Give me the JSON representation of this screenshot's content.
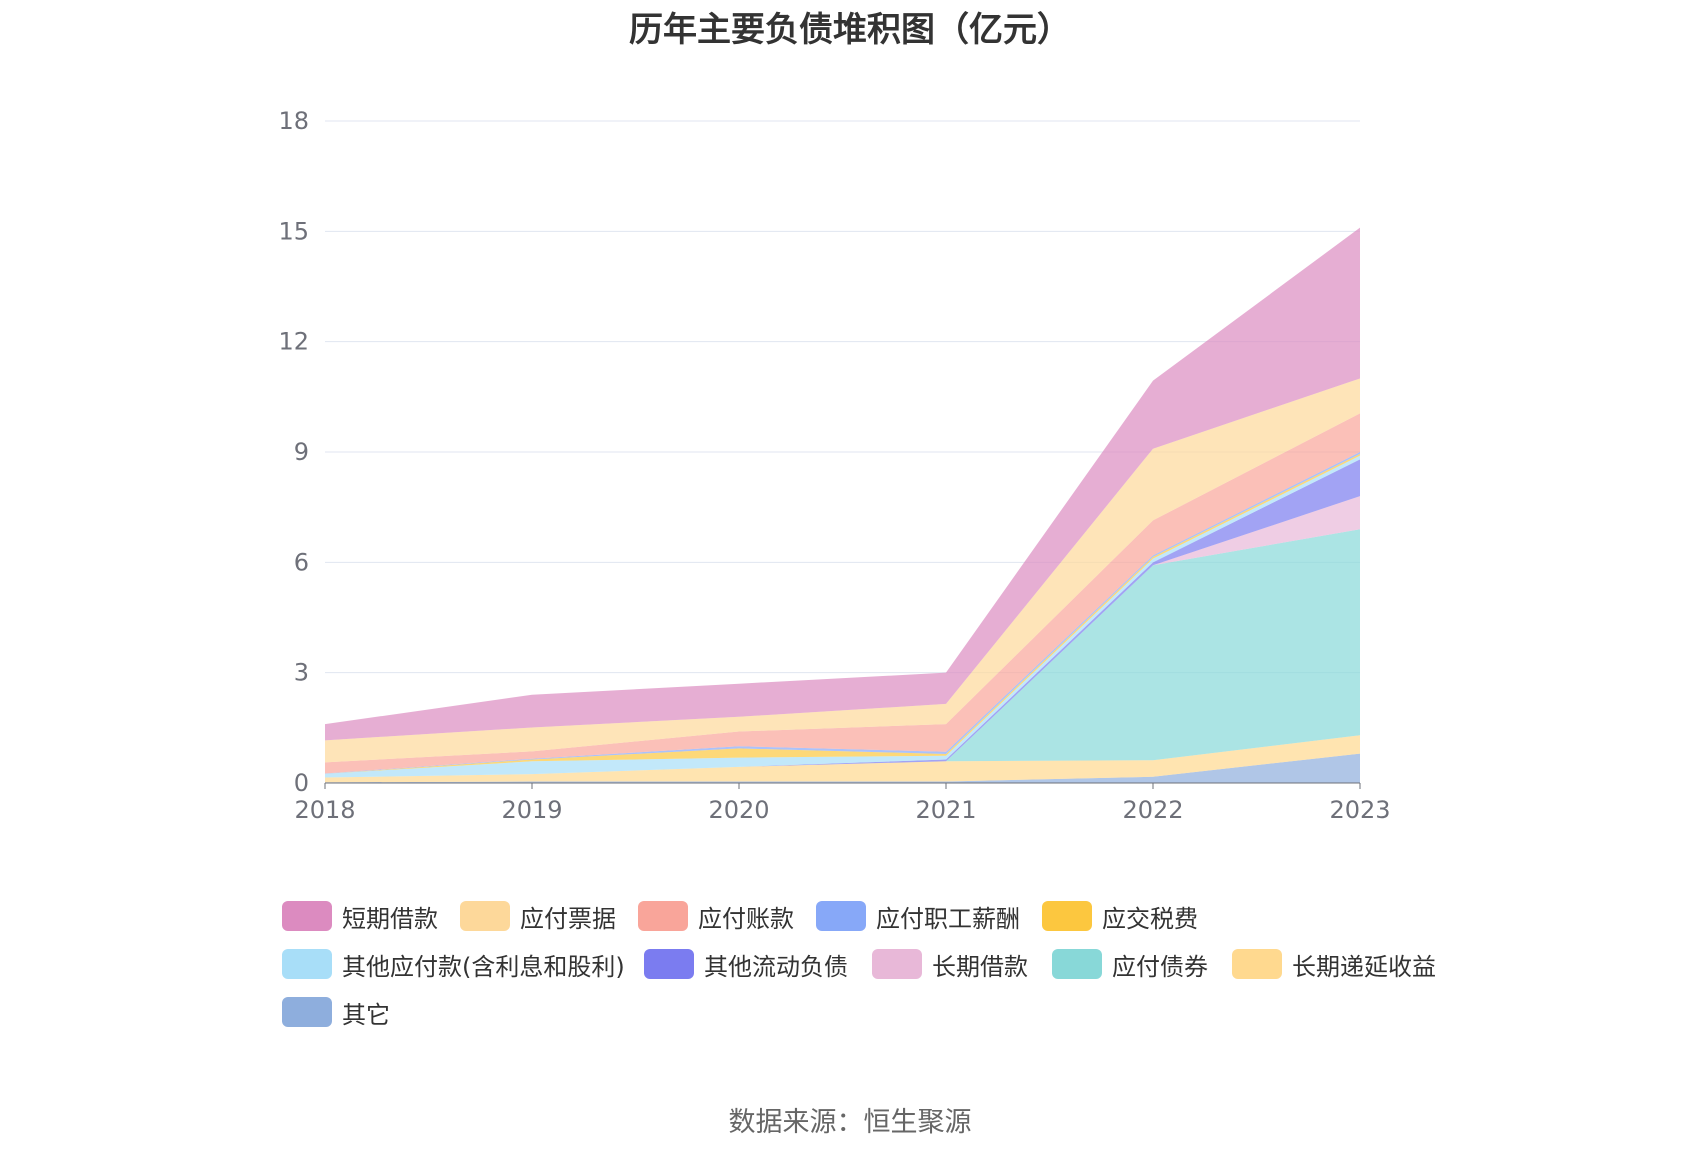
{
  "chart_data": {
    "type": "area",
    "stacked": true,
    "title": "历年主要负债堆积图（亿元）",
    "xlabel": "",
    "ylabel": "",
    "ylim": [
      0,
      18
    ],
    "yticks": [
      "0",
      "3",
      "6",
      "9",
      "12",
      "15",
      "18"
    ],
    "categories": [
      "2018",
      "2019",
      "2020",
      "2021",
      "2022",
      "2023"
    ],
    "grid": true,
    "legend_position": "bottom",
    "series": [
      {
        "name": "其它",
        "color": "#8eaedd",
        "values": [
          0.02,
          0.04,
          0.04,
          0.04,
          0.17,
          0.8
        ]
      },
      {
        "name": "长期递延收益",
        "color": "#ffd98f",
        "values": [
          0.13,
          0.2,
          0.4,
          0.55,
          0.45,
          0.5
        ]
      },
      {
        "name": "应付债券",
        "color": "#88d8d8",
        "values": [
          0,
          0,
          0,
          0,
          5.3,
          5.6
        ]
      },
      {
        "name": "长期借款",
        "color": "#e8b8d8",
        "values": [
          0,
          0,
          0,
          0,
          0,
          0.9
        ]
      },
      {
        "name": "其他流动负债",
        "color": "#7b7cf0",
        "values": [
          0,
          0,
          0,
          0.05,
          0.08,
          1.0
        ]
      },
      {
        "name": "其他应付款(含利息和股利)",
        "color": "#a8def8",
        "values": [
          0.1,
          0.35,
          0.25,
          0.1,
          0.1,
          0.1
        ]
      },
      {
        "name": "应交税费",
        "color": "#fcc73f",
        "values": [
          0,
          0.05,
          0.25,
          0.05,
          0.05,
          0.05
        ]
      },
      {
        "name": "应付职工薪酬",
        "color": "#87a8f8",
        "values": [
          0.01,
          0.02,
          0.06,
          0.06,
          0.04,
          0.05
        ]
      },
      {
        "name": "应付账款",
        "color": "#f9a59a",
        "values": [
          0.3,
          0.2,
          0.4,
          0.75,
          0.95,
          1.05
        ]
      },
      {
        "name": "应付票据",
        "color": "#fdd89a",
        "values": [
          0.6,
          0.65,
          0.4,
          0.55,
          1.95,
          0.95
        ]
      },
      {
        "name": "短期借款",
        "color": "#dc8bc0",
        "values": [
          0.44,
          0.89,
          0.9,
          0.85,
          1.85,
          4.1
        ]
      }
    ]
  },
  "legend": [
    {
      "label": "短期借款",
      "color": "#dc8bc0"
    },
    {
      "label": "应付票据",
      "color": "#fdd89a"
    },
    {
      "label": "应付账款",
      "color": "#f9a59a"
    },
    {
      "label": "应付职工薪酬",
      "color": "#87a8f8"
    },
    {
      "label": "应交税费",
      "color": "#fcc73f"
    },
    {
      "label": "其他应付款(含利息和股利)",
      "color": "#a8def8"
    },
    {
      "label": "其他流动负债",
      "color": "#7b7cf0"
    },
    {
      "label": "长期借款",
      "color": "#e8b8d8"
    },
    {
      "label": "应付债券",
      "color": "#88d8d8"
    },
    {
      "label": "长期递延收益",
      "color": "#ffd98f"
    },
    {
      "label": "其它",
      "color": "#8eaedd"
    }
  ],
  "source": "数据来源：恒生聚源"
}
